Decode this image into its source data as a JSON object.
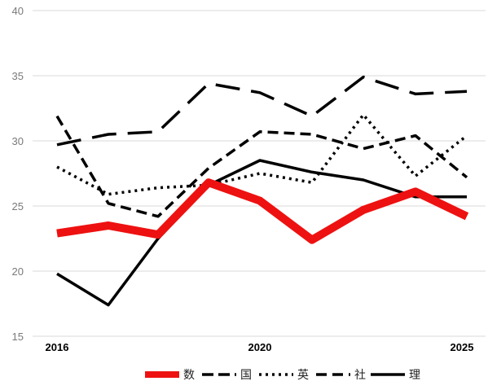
{
  "chart_data": {
    "type": "line",
    "x": [
      2016,
      2017,
      2018,
      2019,
      2020,
      2021,
      2022,
      2023,
      2024,
      2025
    ],
    "x_tick_labels": [
      "2016",
      "2020",
      "2025"
    ],
    "ylim": [
      15,
      40
    ],
    "y_ticks": [
      15,
      20,
      25,
      30,
      35,
      40
    ],
    "grid": true,
    "legend_position": "bottom",
    "series": [
      {
        "name": "数",
        "color": "#ee1111",
        "style": "thick-solid",
        "values": [
          22.9,
          23.5,
          22.8,
          26.8,
          25.4,
          22.4,
          24.7,
          26.1,
          24.2,
          null
        ]
      },
      {
        "name": "国",
        "color": "#000000",
        "style": "long-dash",
        "values": [
          29.7,
          30.5,
          30.7,
          34.4,
          33.7,
          31.9,
          34.9,
          33.6,
          33.8,
          null
        ]
      },
      {
        "name": "英",
        "color": "#000000",
        "style": "dotted",
        "values": [
          28.0,
          25.9,
          26.4,
          26.6,
          27.5,
          26.8,
          32.0,
          27.3,
          30.4,
          null
        ]
      },
      {
        "name": "社",
        "color": "#000000",
        "style": "dashed",
        "values": [
          31.9,
          25.2,
          24.2,
          27.9,
          30.7,
          30.5,
          29.4,
          30.4,
          27.2,
          null
        ]
      },
      {
        "name": "理",
        "color": "#000000",
        "style": "solid",
        "values": [
          19.8,
          17.4,
          22.5,
          26.6,
          28.5,
          27.6,
          27.0,
          25.7,
          25.7,
          null
        ]
      }
    ]
  }
}
